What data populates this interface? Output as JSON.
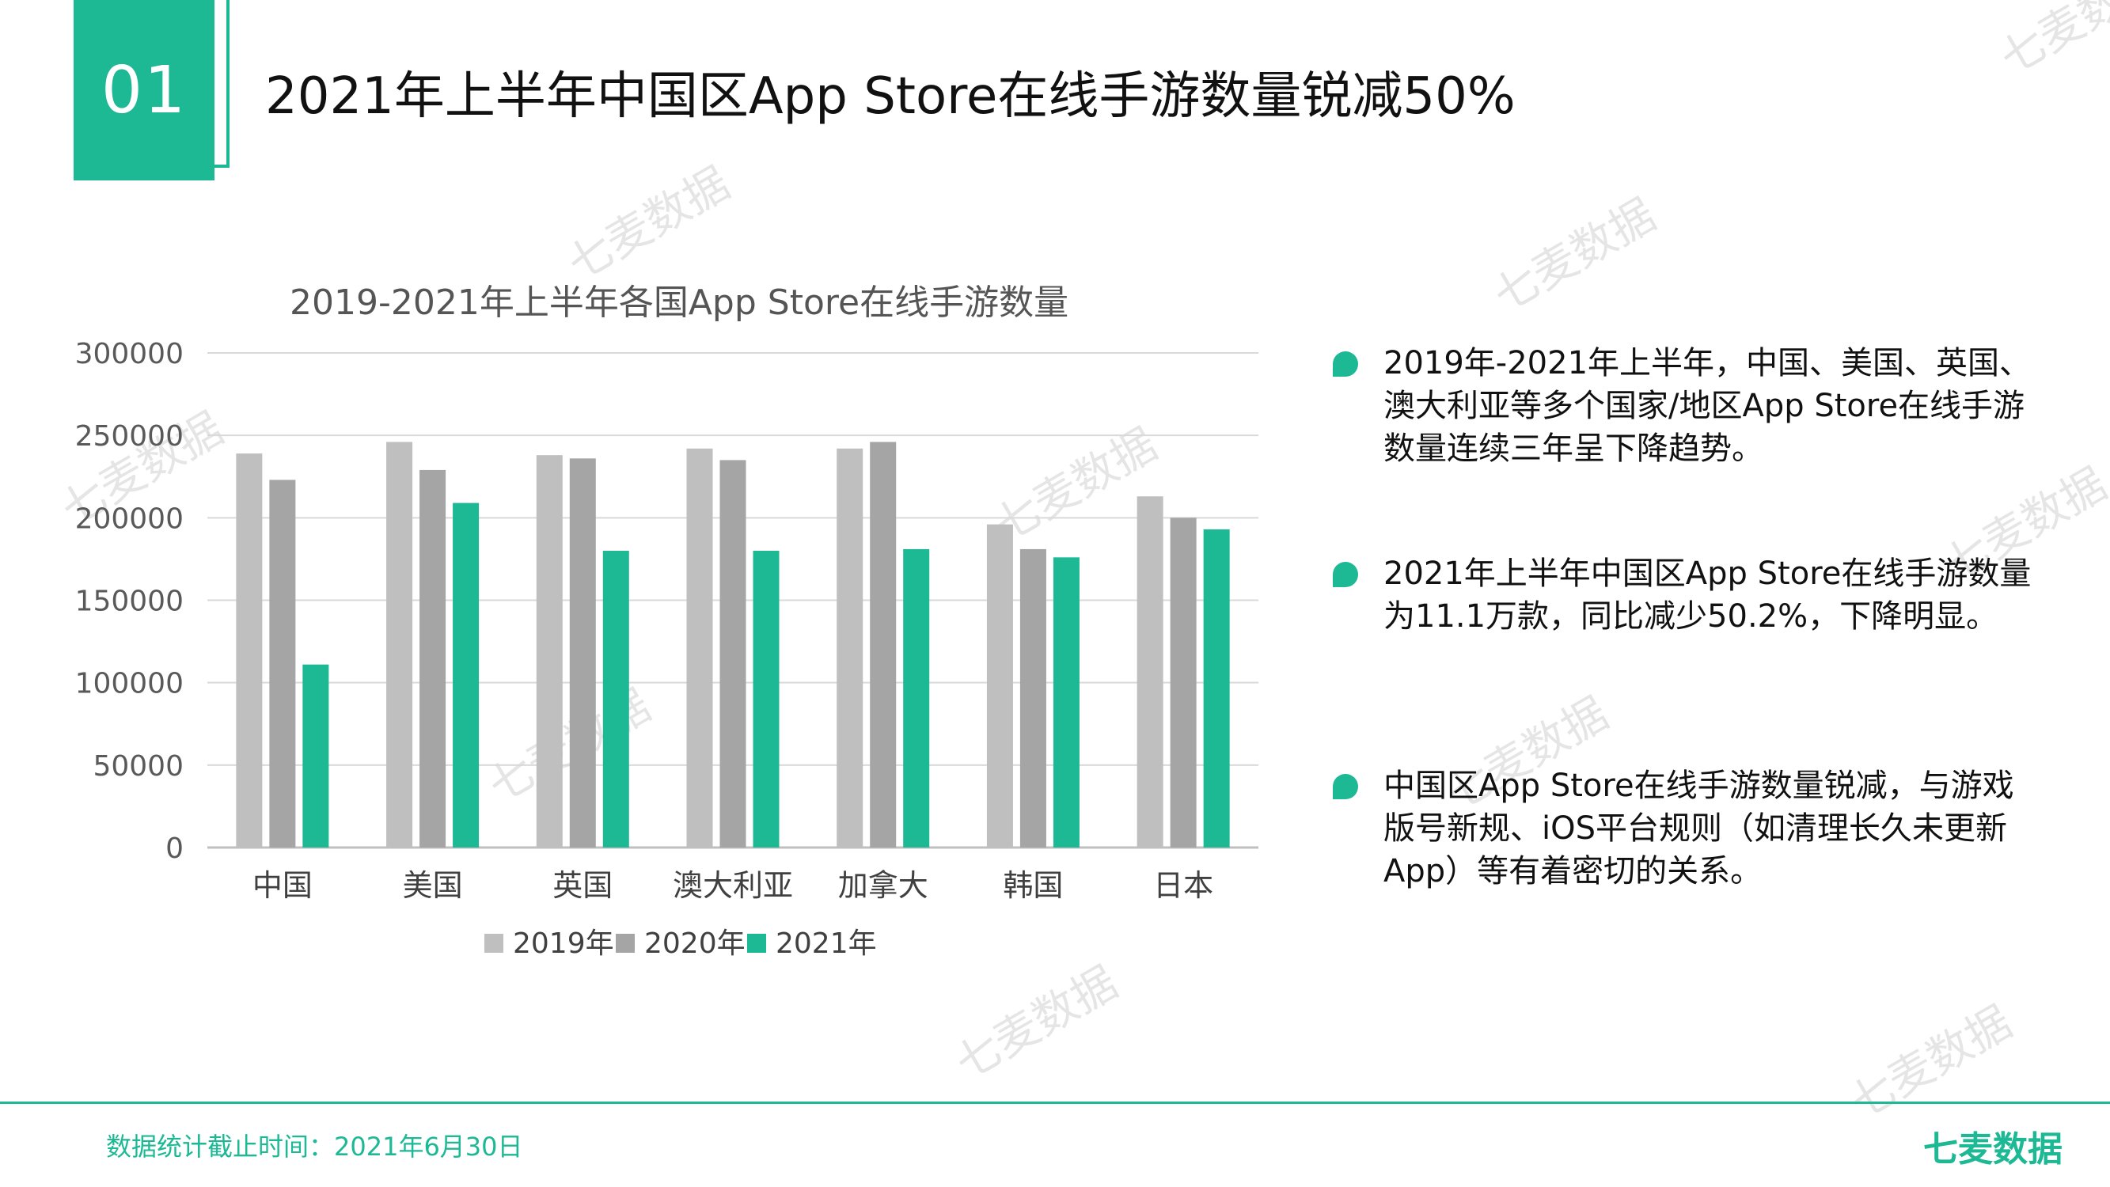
{
  "header": {
    "badge_number": "01",
    "title": "2021年上半年中国区App Store在线手游数量锐减50%"
  },
  "watermarks": [
    "七麦数据",
    "七麦数据",
    "七麦数据",
    "七麦数据",
    "七麦数据",
    "七麦数据",
    "七麦数据",
    "七麦数据",
    "七麦数据",
    "七麦数据"
  ],
  "chart_data": {
    "type": "bar",
    "title": "2019-2021年上半年各国App Store在线手游数量",
    "categories": [
      "中国",
      "美国",
      "英国",
      "澳大利亚",
      "加拿大",
      "韩国",
      "日本"
    ],
    "series": [
      {
        "name": "2019年",
        "color": "#bfbfbf",
        "values": [
          239000,
          246000,
          238000,
          242000,
          242000,
          196000,
          213000
        ]
      },
      {
        "name": "2020年",
        "color": "#a5a5a5",
        "values": [
          223000,
          229000,
          236000,
          235000,
          246000,
          181000,
          200000
        ]
      },
      {
        "name": "2021年",
        "color": "#1db894",
        "values": [
          111000,
          209000,
          180000,
          180000,
          181000,
          176000,
          193000
        ]
      }
    ],
    "ylim": [
      0,
      300000
    ],
    "yticks": [
      "0",
      "50000",
      "100000",
      "150000",
      "200000",
      "250000",
      "300000"
    ],
    "grid": true,
    "legend_position": "bottom"
  },
  "bullets": [
    "2019年-2021年上半年，中国、美国、英国、澳大利亚等多个国家/地区App Store在线手游数量连续三年呈下降趋势。",
    "2021年上半年中国区App Store在线手游数量为11.1万款，同比减少50.2%，下降明显。",
    "中国区App Store在线手游数量锐减，与游戏版号新规、iOS平台规则（如清理长久未更新App）等有着密切的关系。"
  ],
  "footer": {
    "date_note": "数据统计截止时间：2021年6月30日",
    "brand": "七麦数据"
  },
  "colors": {
    "accent": "#1db894"
  }
}
